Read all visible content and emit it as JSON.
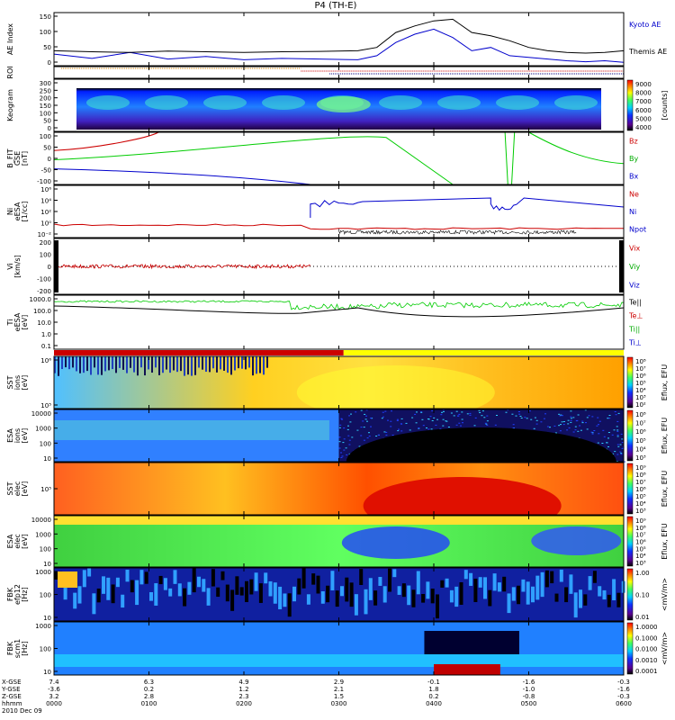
{
  "title": "P4 (TH-E)",
  "chart_data": [
    {
      "type": "line",
      "panel": "ae",
      "ylabel": "AE Index",
      "yticks": [
        "150",
        "100",
        "50",
        "0"
      ],
      "ylim": [
        0,
        160
      ],
      "legend": [
        {
          "name": "Kyoto AE",
          "color": "#0000cc"
        },
        {
          "name": "Themis AE",
          "color": "#000000"
        }
      ],
      "x_hours": [
        0,
        0.4,
        0.8,
        1.2,
        1.6,
        2.0,
        2.4,
        2.8,
        3.2,
        3.4,
        3.6,
        3.8,
        4.0,
        4.2,
        4.4,
        4.6,
        4.8,
        5.0,
        5.2,
        5.4,
        5.6,
        5.8,
        6.0
      ],
      "series": [
        {
          "name": "Kyoto AE",
          "color": "#0000cc",
          "values": [
            35,
            22,
            40,
            20,
            28,
            18,
            22,
            20,
            18,
            30,
            70,
            95,
            110,
            85,
            45,
            55,
            30,
            25,
            20,
            15,
            12,
            15,
            10
          ]
        },
        {
          "name": "Themis AE",
          "color": "#000000",
          "values": [
            45,
            42,
            40,
            44,
            42,
            40,
            42,
            43,
            45,
            55,
            100,
            120,
            135,
            140,
            100,
            90,
            75,
            55,
            45,
            40,
            38,
            40,
            45
          ]
        }
      ]
    },
    {
      "type": "table",
      "panel": "roi",
      "ylabel": "ROI"
    },
    {
      "type": "heatmap",
      "panel": "keogram",
      "ylabel": "Keogram",
      "yticks": [
        "300",
        "250",
        "200",
        "150",
        "100",
        "50",
        "0"
      ],
      "colorbar_label": "[counts]",
      "colorbar_ticks": [
        "9000",
        "8000",
        "7000",
        "6000",
        "5000",
        "4000"
      ]
    },
    {
      "type": "line",
      "panel": "bfit",
      "ylabel": "B_FIT",
      "ysub": "GSE",
      "yunit": "[nT]",
      "yticks": [
        "100",
        "50",
        "0",
        "-50",
        "-100"
      ],
      "ylim": [
        -100,
        100
      ],
      "legend": [
        {
          "name": "Bz",
          "color": "#cc0000"
        },
        {
          "name": "By",
          "color": "#00aa00"
        },
        {
          "name": "Bx",
          "color": "#0000cc"
        }
      ]
    },
    {
      "type": "line",
      "panel": "ni",
      "ylabel": "Ni",
      "ysub": "eESA",
      "yunit": "[1/cc]",
      "yticks": [
        "10⁶",
        "10⁴",
        "10²",
        "10⁰",
        "10⁻²"
      ],
      "legend": [
        {
          "name": "Ne",
          "color": "#cc0000"
        },
        {
          "name": "Ni",
          "color": "#0000cc"
        },
        {
          "name": "Npot",
          "color": "#0000cc"
        }
      ]
    },
    {
      "type": "line",
      "panel": "vi",
      "ylabel": "Vi",
      "yunit": "[km/s]",
      "yticks": [
        "200",
        "100",
        "0",
        "-100",
        "-200"
      ],
      "ylim": [
        -200,
        200
      ],
      "legend": [
        {
          "name": "Vix",
          "color": "#cc0000"
        },
        {
          "name": "Viy",
          "color": "#00aa00"
        },
        {
          "name": "Viz",
          "color": "#0000cc"
        }
      ]
    },
    {
      "type": "line",
      "panel": "ti",
      "ylabel": "Ti",
      "ysub": "eESA",
      "yunit": "[eV]",
      "yticks": [
        "1000.0",
        "100.0",
        "10.0",
        "1.0",
        "0.1"
      ],
      "legend": [
        {
          "name": "Te||",
          "color": "#000000"
        },
        {
          "name": "Te⊥",
          "color": "#cc0000"
        },
        {
          "name": "Ti||",
          "color": "#00aa00"
        },
        {
          "name": "Ti⊥",
          "color": "#0000cc"
        }
      ]
    },
    {
      "type": "heatmap",
      "panel": "sst_ion",
      "ylabel": "SST",
      "ysub": "ions",
      "yunit": "[eV]",
      "yticks": [
        "10⁶",
        "10⁵"
      ],
      "colorbar_label": "Eflux, EFU",
      "colorbar_ticks": [
        "10⁸",
        "10⁷",
        "10⁶",
        "10⁵",
        "10⁴",
        "10³",
        "10²"
      ]
    },
    {
      "type": "heatmap",
      "panel": "esa_ion",
      "ylabel": "ESA",
      "ysub": "ions",
      "yunit": "[eV]",
      "yticks": [
        "10000",
        "1000",
        "100",
        "10"
      ],
      "colorbar_label": "Eflux, EFU",
      "colorbar_ticks": [
        "10⁸",
        "10⁷",
        "10⁶",
        "10⁵",
        "10⁴",
        "10³"
      ]
    },
    {
      "type": "heatmap",
      "panel": "sst_elec",
      "ylabel": "SST",
      "ysub": "elec",
      "yunit": "[eV]",
      "yticks": [
        "10⁵"
      ],
      "colorbar_label": "Eflux, EFU",
      "colorbar_ticks": [
        "10⁹",
        "10⁸",
        "10⁷",
        "10⁶",
        "10⁵",
        "10⁴",
        "10³"
      ]
    },
    {
      "type": "heatmap",
      "panel": "esa_elec",
      "ylabel": "ESA",
      "ysub": "elec",
      "yunit": "[eV]",
      "yticks": [
        "10000",
        "1000",
        "100",
        "10"
      ],
      "colorbar_label": "Eflux, EFU",
      "colorbar_ticks": [
        "10⁹",
        "10⁸",
        "10⁷",
        "10⁶",
        "10⁵",
        "10⁴",
        "10³"
      ]
    },
    {
      "type": "heatmap",
      "panel": "fbk_e",
      "ylabel": "FBK",
      "ysub": "efp12",
      "yunit": "[Hz]",
      "yticks": [
        "1000",
        "100",
        "10"
      ],
      "colorbar_label": "<mV/m>",
      "colorbar_ticks": [
        "1.00",
        "0.10",
        "0.01"
      ]
    },
    {
      "type": "heatmap",
      "panel": "fbk_b",
      "ylabel": "FBK",
      "ysub": "scm1",
      "yunit": "[Hz]",
      "yticks": [
        "1000",
        "100",
        "10"
      ],
      "colorbar_label": "<mV/m>",
      "colorbar_ticks": [
        "1.0000",
        "0.1000",
        "0.0100",
        "0.0010",
        "0.0001"
      ]
    }
  ],
  "xaxis": {
    "row_labels": [
      "X-GSE",
      "Y-GSE",
      "Z-GSE",
      "hhmm",
      "2010 Dec 09"
    ],
    "columns": [
      {
        "x": "7.4",
        "y": "-3.6",
        "z": "3.2",
        "t": "0000"
      },
      {
        "x": "6.3",
        "y": "0.2",
        "z": "2.8",
        "t": "0100"
      },
      {
        "x": "4.9",
        "y": "1.2",
        "z": "2.3",
        "t": "0200"
      },
      {
        "x": "2.9",
        "y": "2.1",
        "z": "1.5",
        "t": "0300"
      },
      {
        "x": "-0.1",
        "y": "1.8",
        "z": "0.2",
        "t": "0400"
      },
      {
        "x": "-1.6",
        "y": "-1.0",
        "z": "-0.8",
        "t": "0500"
      },
      {
        "x": "-0.3",
        "y": "-1.6",
        "z": "-0.3",
        "t": "0600"
      }
    ]
  }
}
